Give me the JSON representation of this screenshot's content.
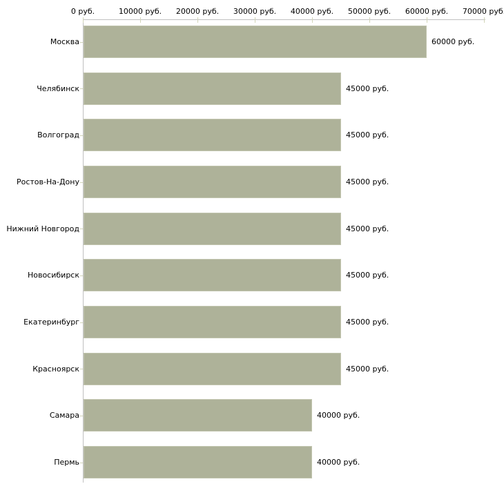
{
  "chart_data": {
    "type": "bar",
    "orientation": "horizontal",
    "title": "",
    "xlabel": "",
    "ylabel": "",
    "unit_suffix": "руб.",
    "categories": [
      "Москва",
      "Челябинск",
      "Волгоград",
      "Ростов-На-Дону",
      "Нижний Новгород",
      "Новосибирск",
      "Екатеринбург",
      "Красноярск",
      "Самара",
      "Пермь"
    ],
    "values": [
      60000,
      45000,
      45000,
      45000,
      45000,
      45000,
      45000,
      45000,
      40000,
      40000
    ],
    "bar_value_labels": [
      "60000 руб.",
      "45000 руб.",
      "45000 руб.",
      "45000 руб.",
      "45000 руб.",
      "45000 руб.",
      "45000 руб.",
      "45000 руб.",
      "40000 руб.",
      "40000 руб."
    ],
    "x_tick_values": [
      0,
      10000,
      20000,
      30000,
      40000,
      50000,
      60000,
      70000
    ],
    "x_tick_labels": [
      "0 руб.",
      "10000 руб.",
      "20000 руб.",
      "30000 руб.",
      "40000 руб.",
      "50000 руб.",
      "60000 руб.",
      "70000 руб."
    ],
    "xlim": [
      0,
      70000
    ],
    "grid": false,
    "legend": false,
    "colors": {
      "bar_fill": "#aeb299",
      "bar_border": "#c3c6b0",
      "axis_line": "#c0c0c0",
      "tick_mark": "#d2d5b8",
      "text": "#000000",
      "background": "#ffffff"
    }
  }
}
